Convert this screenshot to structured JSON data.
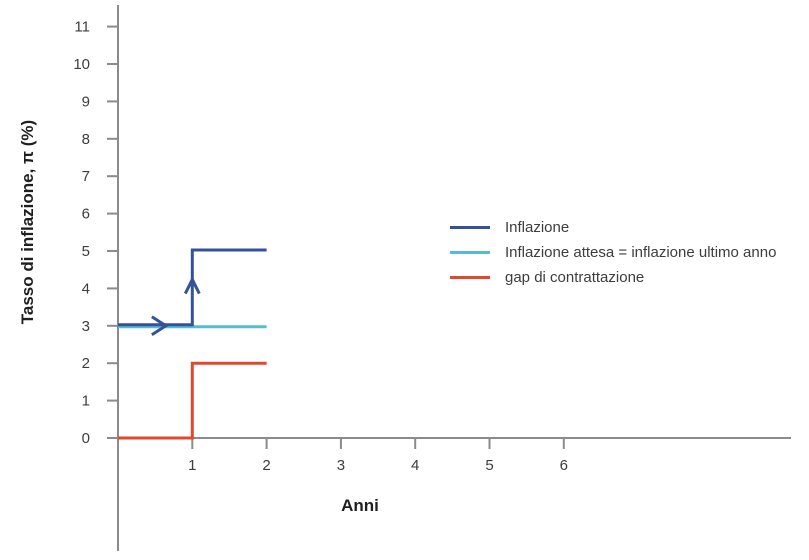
{
  "figure": {
    "ylabel": "Tasso di inflazione, π (%)",
    "xlabel": "Anni"
  },
  "colors": {
    "axis": "#8b8b8b",
    "tick_text": "#3d3d3d",
    "title_text": "#1f1f1f",
    "inflazione": "#34519c",
    "inflazione_attesa": "#54bdd4",
    "gap_contrattazione": "#e0492e"
  },
  "chart_data": {
    "type": "line",
    "title": "",
    "xlabel": "Anni",
    "ylabel": "Tasso di inflazione, π (%)",
    "xlim": [
      0,
      9.05
    ],
    "ylim": [
      0,
      11.6
    ],
    "xticks": [
      1,
      2,
      3,
      4,
      5,
      6
    ],
    "yticks": [
      0,
      1,
      2,
      3,
      4,
      5,
      6,
      7,
      8,
      9,
      10,
      11
    ],
    "grid": false,
    "legend_position": "center-right-inside",
    "series": [
      {
        "name": "Inflazione",
        "color": "#34519c",
        "points": [
          [
            0,
            3
          ],
          [
            1,
            3
          ],
          [
            1,
            5
          ],
          [
            2,
            5
          ]
        ]
      },
      {
        "name": "Inflazione attesa = inflazione ultimo anno",
        "color": "#54bdd4",
        "points": [
          [
            0,
            3
          ],
          [
            2,
            3
          ]
        ]
      },
      {
        "name": "gap di contrattazione",
        "color": "#e0492e",
        "points": [
          [
            0,
            0
          ],
          [
            1,
            0
          ],
          [
            1,
            2
          ],
          [
            2,
            2
          ]
        ]
      }
    ],
    "annotations": [
      {
        "type": "arrow-right",
        "at": [
          0.55,
          3
        ],
        "color": "#34519c"
      },
      {
        "type": "arrow-up",
        "at": [
          1,
          4.05
        ],
        "color": "#34519c"
      }
    ]
  }
}
